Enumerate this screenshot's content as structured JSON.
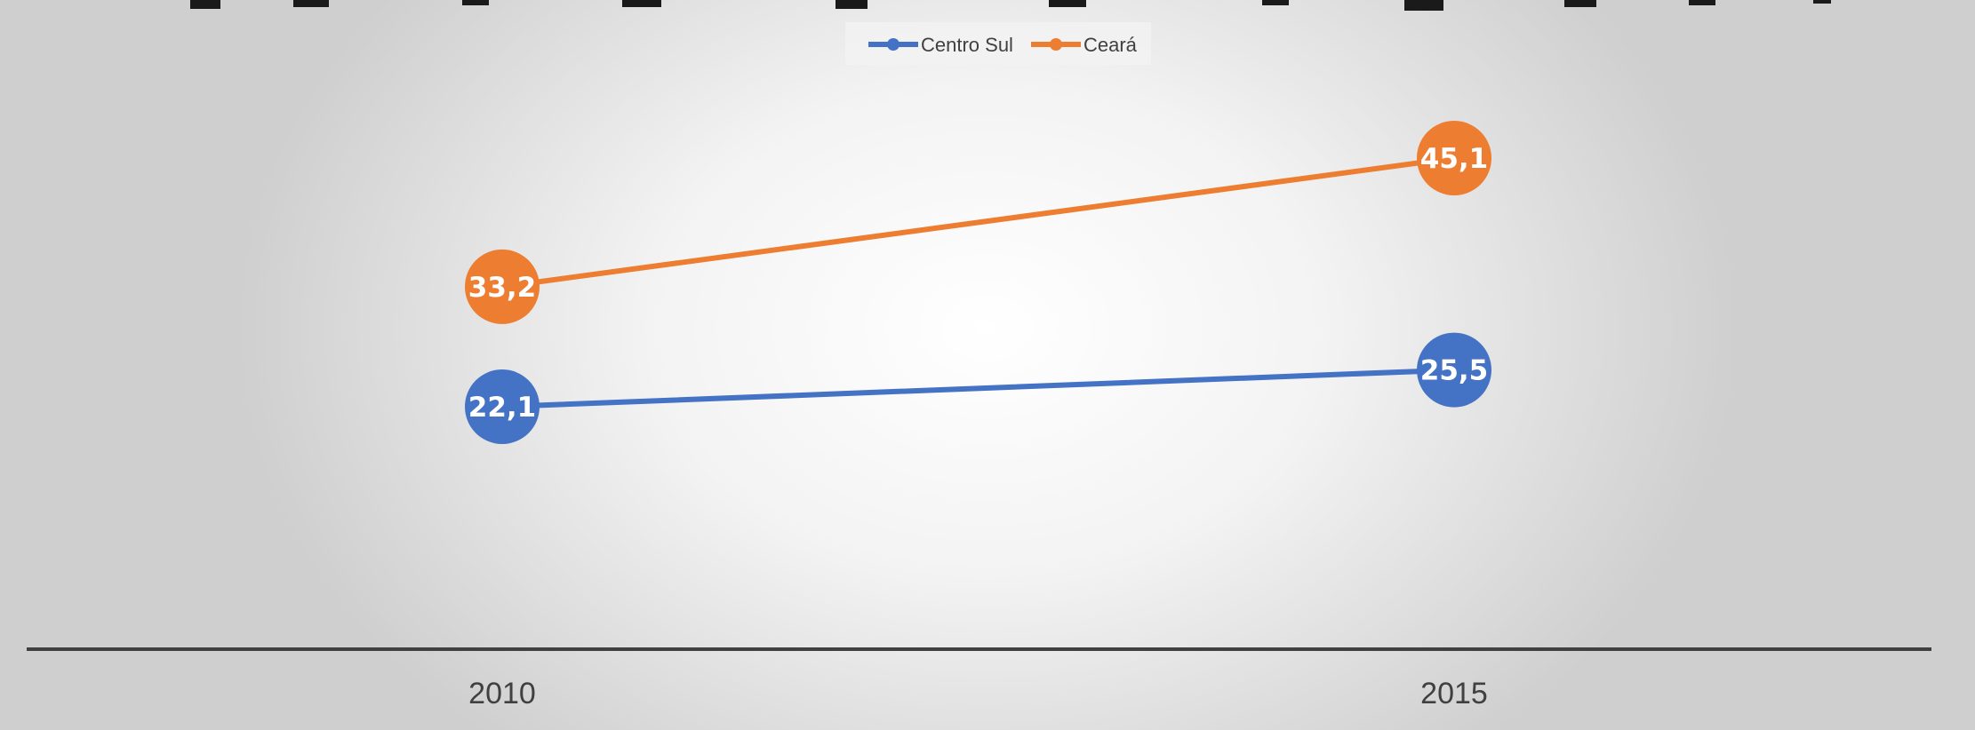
{
  "chart_data": {
    "type": "line",
    "title": "",
    "xlabel": "",
    "ylabel": "",
    "categories": [
      "2010",
      "2015"
    ],
    "series": [
      {
        "name": "Centro Sul",
        "values": [
          22.1,
          25.5
        ],
        "labels": [
          "22,1",
          "25,5"
        ],
        "color": "#4472C4"
      },
      {
        "name": "Ceará",
        "values": [
          33.2,
          45.1
        ],
        "labels": [
          "33,2",
          "45,1"
        ],
        "color": "#ED7D31"
      }
    ],
    "ylim": [
      0,
      60
    ],
    "legend_position": "top-center",
    "grid": false
  }
}
